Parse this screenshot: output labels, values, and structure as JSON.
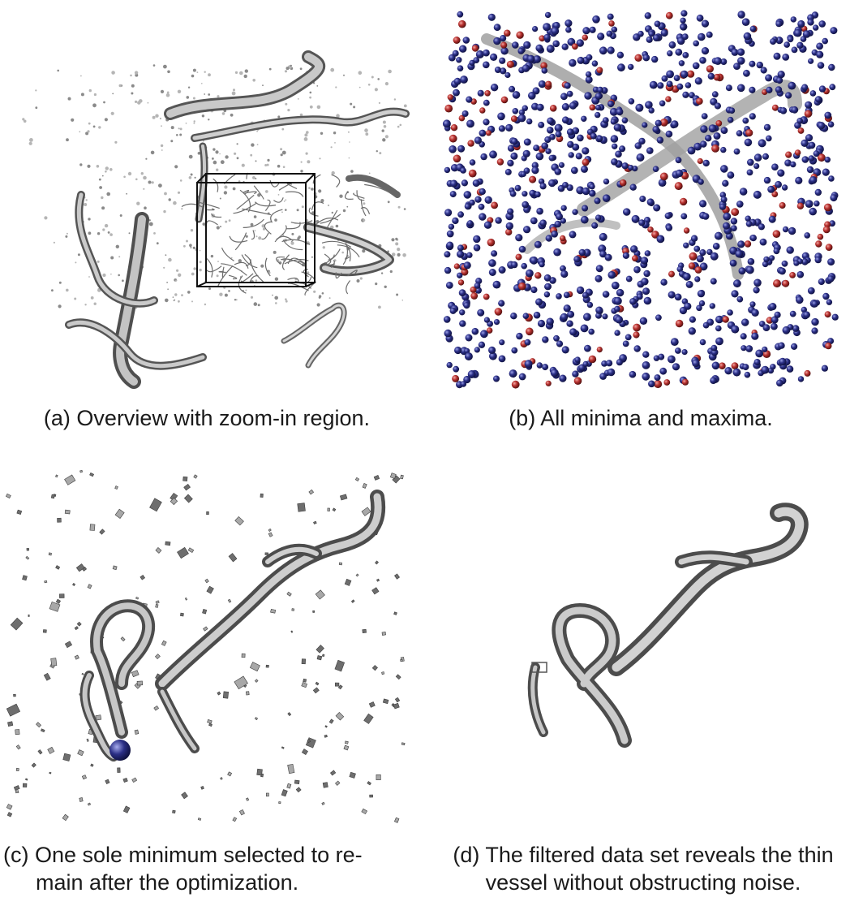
{
  "figure": {
    "panels": [
      {
        "id": "a",
        "caption": "(a) Overview with zoom-in region.",
        "image": "vessel overview render with zoom box"
      },
      {
        "id": "b",
        "caption": "(b) All minima and maxima.",
        "image": "scatter of minima (blue) and maxima (red) spheres"
      },
      {
        "id": "c",
        "caption_lines": [
          "(c) One sole minimum selected to re-",
          "main after the optimization."
        ],
        "image": "vessel with noise fragments and one selected minimum"
      },
      {
        "id": "d",
        "caption_lines": [
          "(d) The filtered data set reveals the thin",
          "vessel without obstructing noise."
        ],
        "image": "filtered thin vessel"
      }
    ],
    "colors": {
      "minimum_sphere": "#2b2f86",
      "maximum_sphere": "#b8312f",
      "vessel": "#a9a9a9",
      "vessel_shadow": "#5a5a5a",
      "zoom_box": "#111111"
    }
  }
}
